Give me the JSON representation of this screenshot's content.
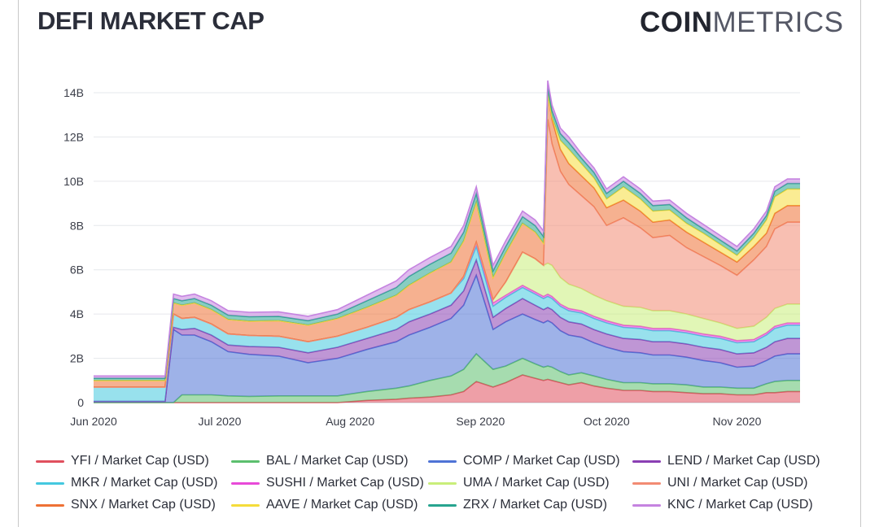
{
  "header": {
    "title": "DEFI MARKET CAP",
    "brand_bold": "COIN",
    "brand_light": "METRICS"
  },
  "chart_data": {
    "type": "area",
    "stacked": true,
    "title": "DEFI MARKET CAP",
    "xlabel": "",
    "ylabel": "",
    "ylim": [
      0,
      14000000000
    ],
    "y_ticks": [
      0,
      2000000000,
      4000000000,
      6000000000,
      8000000000,
      10000000000,
      12000000000,
      14000000000
    ],
    "y_tick_labels": [
      "0",
      "2B",
      "4B",
      "6B",
      "8B",
      "10B",
      "12B",
      "14B"
    ],
    "x_tick_labels": [
      "Jun 2020",
      "Jul 2020",
      "Aug 2020",
      "Sep 2020",
      "Oct 2020",
      "Nov 2020"
    ],
    "x_tick_dates": [
      "2020-06-01",
      "2020-07-01",
      "2020-08-01",
      "2020-09-01",
      "2020-10-01",
      "2020-11-01"
    ],
    "grid": true,
    "legend_position": "bottom",
    "x": [
      "2020-06-01",
      "2020-06-10",
      "2020-06-18",
      "2020-06-20",
      "2020-06-22",
      "2020-06-25",
      "2020-06-29",
      "2020-07-03",
      "2020-07-08",
      "2020-07-15",
      "2020-07-22",
      "2020-07-29",
      "2020-08-05",
      "2020-08-12",
      "2020-08-15",
      "2020-08-20",
      "2020-08-25",
      "2020-08-28",
      "2020-08-31",
      "2020-09-04",
      "2020-09-07",
      "2020-09-11",
      "2020-09-14",
      "2020-09-16",
      "2020-09-17",
      "2020-09-18",
      "2020-09-20",
      "2020-09-22",
      "2020-09-25",
      "2020-09-28",
      "2020-10-01",
      "2020-10-05",
      "2020-10-09",
      "2020-10-12",
      "2020-10-16",
      "2020-10-20",
      "2020-10-24",
      "2020-10-28",
      "2020-11-01",
      "2020-11-05",
      "2020-11-08",
      "2020-11-10",
      "2020-11-13",
      "2020-11-16"
    ],
    "series": [
      {
        "name": "YFI / Market Cap (USD)",
        "color": "#e0505e",
        "values": [
          0,
          0,
          0,
          0,
          0,
          0,
          0,
          0,
          0,
          0,
          0,
          0,
          0.1,
          0.15,
          0.2,
          0.25,
          0.35,
          0.5,
          0.95,
          0.7,
          0.9,
          1.25,
          1.1,
          1.0,
          1.05,
          1.0,
          0.9,
          0.8,
          0.9,
          0.75,
          0.65,
          0.55,
          0.55,
          0.5,
          0.5,
          0.45,
          0.4,
          0.4,
          0.35,
          0.35,
          0.45,
          0.45,
          0.5,
          0.5
        ]
      },
      {
        "name": "BAL / Market Cap (USD)",
        "color": "#5cbf6e",
        "values": [
          0,
          0,
          0,
          0,
          0.35,
          0.35,
          0.35,
          0.3,
          0.28,
          0.3,
          0.3,
          0.3,
          0.4,
          0.5,
          0.55,
          0.75,
          0.85,
          1.0,
          1.25,
          0.8,
          0.75,
          0.75,
          0.65,
          0.6,
          0.6,
          0.6,
          0.5,
          0.45,
          0.45,
          0.45,
          0.4,
          0.35,
          0.35,
          0.35,
          0.35,
          0.35,
          0.3,
          0.3,
          0.3,
          0.3,
          0.4,
          0.5,
          0.5,
          0.5
        ]
      },
      {
        "name": "COMP / Market Cap (USD)",
        "color": "#4f73d6",
        "values": [
          0.05,
          0.05,
          0.05,
          3.3,
          2.7,
          2.7,
          2.4,
          2.0,
          1.9,
          1.8,
          1.5,
          1.7,
          1.9,
          2.1,
          2.3,
          2.4,
          2.6,
          2.9,
          3.55,
          1.8,
          2.0,
          2.0,
          2.0,
          2.0,
          2.05,
          2.0,
          1.85,
          1.8,
          1.6,
          1.5,
          1.45,
          1.4,
          1.35,
          1.3,
          1.3,
          1.25,
          1.2,
          1.1,
          0.95,
          1.0,
          1.05,
          1.15,
          1.2,
          1.2
        ]
      },
      {
        "name": "LEND / Market Cap (USD)",
        "color": "#8a3fb3",
        "values": [
          0,
          0,
          0,
          0.1,
          0.25,
          0.3,
          0.3,
          0.3,
          0.35,
          0.4,
          0.45,
          0.5,
          0.5,
          0.55,
          0.6,
          0.6,
          0.6,
          0.65,
          0.7,
          0.55,
          0.6,
          0.7,
          0.65,
          0.6,
          0.6,
          0.6,
          0.6,
          0.6,
          0.6,
          0.6,
          0.6,
          0.6,
          0.6,
          0.6,
          0.6,
          0.6,
          0.6,
          0.6,
          0.6,
          0.6,
          0.6,
          0.65,
          0.7,
          0.7
        ]
      },
      {
        "name": "MKR / Market Cap (USD)",
        "color": "#44c8df",
        "values": [
          0.65,
          0.65,
          0.65,
          0.6,
          0.5,
          0.5,
          0.5,
          0.5,
          0.5,
          0.5,
          0.5,
          0.5,
          0.5,
          0.55,
          0.55,
          0.55,
          0.55,
          0.55,
          0.6,
          0.5,
          0.5,
          0.5,
          0.5,
          0.5,
          0.5,
          0.5,
          0.5,
          0.5,
          0.5,
          0.5,
          0.5,
          0.5,
          0.5,
          0.5,
          0.5,
          0.5,
          0.5,
          0.5,
          0.5,
          0.5,
          0.55,
          0.6,
          0.6,
          0.6
        ]
      },
      {
        "name": "SUSHI / Market Cap (USD)",
        "color": "#e84ad8",
        "values": [
          0,
          0,
          0,
          0,
          0,
          0,
          0,
          0,
          0,
          0,
          0,
          0,
          0,
          0,
          0,
          0,
          0,
          0.1,
          0.2,
          0.15,
          0.1,
          0.1,
          0.1,
          0.1,
          0.1,
          0.1,
          0.1,
          0.1,
          0.1,
          0.1,
          0.1,
          0.1,
          0.1,
          0.1,
          0.1,
          0.1,
          0.1,
          0.1,
          0.1,
          0.1,
          0.1,
          0.1,
          0.1,
          0.1
        ]
      },
      {
        "name": "UMA / Market Cap (USD)",
        "color": "#c9ee7a",
        "values": [
          0,
          0,
          0,
          0,
          0,
          0,
          0,
          0,
          0,
          0,
          0,
          0,
          0,
          0,
          0,
          0,
          0,
          0,
          0,
          0.15,
          0.6,
          1.5,
          1.5,
          1.4,
          1.4,
          1.4,
          1.2,
          1.1,
          1.0,
          0.95,
          0.9,
          0.85,
          0.85,
          0.8,
          0.8,
          0.75,
          0.7,
          0.6,
          0.55,
          0.6,
          0.7,
          0.8,
          0.85,
          0.85
        ]
      },
      {
        "name": "UNI / Market Cap (USD)",
        "color": "#f28b73",
        "values": [
          0,
          0,
          0,
          0,
          0,
          0,
          0,
          0,
          0,
          0,
          0,
          0,
          0,
          0,
          0,
          0,
          0,
          0,
          0,
          0,
          0,
          0,
          0,
          0,
          6.5,
          5.5,
          4.8,
          4.5,
          4.2,
          4.0,
          3.4,
          4.0,
          3.6,
          3.3,
          3.4,
          3.0,
          2.8,
          2.6,
          2.4,
          3.0,
          3.2,
          3.6,
          3.7,
          3.7
        ]
      },
      {
        "name": "SNX / Market Cap (USD)",
        "color": "#ee7135",
        "values": [
          0.3,
          0.3,
          0.3,
          0.5,
          0.6,
          0.65,
          0.65,
          0.65,
          0.65,
          0.7,
          0.75,
          0.8,
          0.9,
          1.0,
          1.1,
          1.3,
          1.4,
          1.6,
          1.8,
          1.0,
          1.3,
          1.3,
          1.2,
          1.0,
          1.2,
          1.1,
          1.0,
          0.95,
          0.9,
          0.85,
          0.8,
          0.8,
          0.75,
          0.7,
          0.7,
          0.7,
          0.65,
          0.6,
          0.6,
          0.6,
          0.6,
          0.7,
          0.75,
          0.75
        ]
      },
      {
        "name": "AAVE / Market Cap (USD)",
        "color": "#f5dc3a",
        "values": [
          0,
          0,
          0,
          0,
          0,
          0,
          0,
          0,
          0,
          0,
          0,
          0,
          0,
          0,
          0,
          0,
          0,
          0,
          0,
          0,
          0,
          0,
          0,
          0,
          0,
          0.1,
          0.4,
          0.65,
          0.55,
          0.45,
          0.4,
          0.6,
          0.55,
          0.5,
          0.45,
          0.4,
          0.4,
          0.35,
          0.3,
          0.4,
          0.6,
          0.75,
          0.75,
          0.75
        ]
      },
      {
        "name": "ZRX / Market Cap (USD)",
        "color": "#27a48f",
        "values": [
          0.1,
          0.1,
          0.1,
          0.2,
          0.2,
          0.2,
          0.2,
          0.2,
          0.2,
          0.2,
          0.2,
          0.2,
          0.3,
          0.35,
          0.4,
          0.4,
          0.4,
          0.4,
          0.4,
          0.3,
          0.3,
          0.3,
          0.3,
          0.3,
          0.3,
          0.3,
          0.3,
          0.3,
          0.25,
          0.25,
          0.25,
          0.25,
          0.25,
          0.25,
          0.25,
          0.25,
          0.2,
          0.2,
          0.2,
          0.2,
          0.2,
          0.25,
          0.25,
          0.25
        ]
      },
      {
        "name": "KNC / Market Cap (USD)",
        "color": "#c583e0",
        "values": [
          0.1,
          0.1,
          0.1,
          0.2,
          0.2,
          0.2,
          0.2,
          0.2,
          0.2,
          0.2,
          0.2,
          0.2,
          0.25,
          0.3,
          0.3,
          0.3,
          0.3,
          0.3,
          0.3,
          0.25,
          0.25,
          0.25,
          0.25,
          0.25,
          0.25,
          0.25,
          0.25,
          0.25,
          0.2,
          0.2,
          0.2,
          0.2,
          0.2,
          0.2,
          0.2,
          0.2,
          0.2,
          0.2,
          0.2,
          0.2,
          0.2,
          0.2,
          0.2,
          0.2
        ]
      }
    ],
    "value_unit": "B"
  }
}
